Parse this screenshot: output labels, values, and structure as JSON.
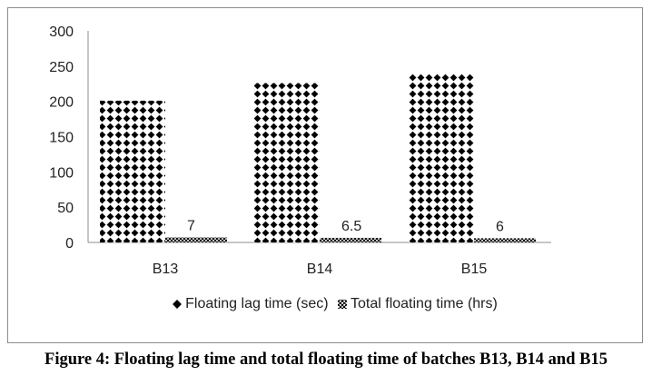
{
  "chart_data": {
    "type": "bar",
    "categories": [
      "B13",
      "B14",
      "B15"
    ],
    "series": [
      {
        "name": "Floating lag time (sec)",
        "values": [
          201,
          226,
          239
        ],
        "pattern": "diamond"
      },
      {
        "name": "Total floating time (hrs)",
        "values": [
          7,
          6.5,
          6
        ],
        "data_labels": [
          "7",
          "6.5",
          "6"
        ],
        "pattern": "crosshatch"
      }
    ],
    "yticks": [
      "0",
      "50",
      "100",
      "150",
      "200",
      "250",
      "300"
    ],
    "ylim": [
      0,
      300
    ],
    "grid": false,
    "legend_position": "bottom"
  },
  "caption": "Figure 4: Floating lag time and total floating time of batches B13, B14 and B15"
}
